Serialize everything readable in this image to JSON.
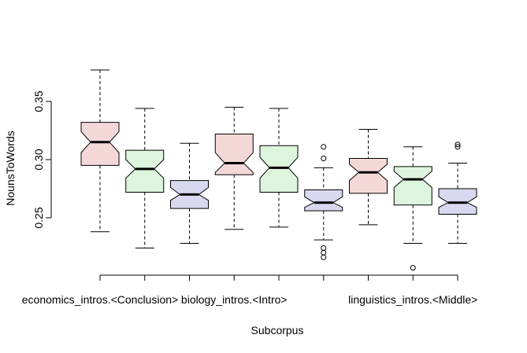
{
  "chart_data": {
    "type": "boxplot",
    "title": "",
    "xlabel": "Subcorpus",
    "ylabel": "NounsToWords",
    "ylim": [
      0.195,
      0.385
    ],
    "y_ticks": [
      0.25,
      0.3,
      0.35
    ],
    "y_tick_labels": [
      "0.25",
      "0.30",
      "0.35"
    ],
    "notched": true,
    "categories": [
      "economics_intros.<Conclusion>",
      "",
      "",
      "biology_intros.<Intro>",
      "",
      "",
      "linguistics_intros.<Middle>",
      "",
      ""
    ],
    "shown_x_labels": [
      {
        "index": 0,
        "text": "economics_intros.<Conclusion>"
      },
      {
        "index": 3,
        "text": "biology_intros.<Intro>"
      },
      {
        "index": 7,
        "text": "linguistics_intros.<Middle>"
      }
    ],
    "fill_colors": [
      "#f4d8d8",
      "#ddf4dd",
      "#d8d8f0"
    ],
    "boxes": [
      {
        "whisker_low": 0.238,
        "q1": 0.295,
        "median": 0.315,
        "q3": 0.332,
        "whisker_high": 0.377,
        "notch_low": 0.306,
        "notch_high": 0.324,
        "outliers": []
      },
      {
        "whisker_low": 0.224,
        "q1": 0.272,
        "median": 0.292,
        "q3": 0.308,
        "whisker_high": 0.344,
        "notch_low": 0.284,
        "notch_high": 0.3,
        "outliers": []
      },
      {
        "whisker_low": 0.228,
        "q1": 0.258,
        "median": 0.27,
        "q3": 0.282,
        "whisker_high": 0.314,
        "notch_low": 0.265,
        "notch_high": 0.276,
        "outliers": []
      },
      {
        "whisker_low": 0.24,
        "q1": 0.287,
        "median": 0.297,
        "q3": 0.322,
        "whisker_high": 0.345,
        "notch_low": 0.289,
        "notch_high": 0.306,
        "outliers": []
      },
      {
        "whisker_low": 0.242,
        "q1": 0.272,
        "median": 0.293,
        "q3": 0.312,
        "whisker_high": 0.344,
        "notch_low": 0.284,
        "notch_high": 0.302,
        "outliers": []
      },
      {
        "whisker_low": 0.231,
        "q1": 0.256,
        "median": 0.263,
        "q3": 0.274,
        "whisker_high": 0.293,
        "notch_low": 0.259,
        "notch_high": 0.268,
        "outliers": [
          0.311,
          0.301,
          0.224,
          0.22,
          0.216
        ]
      },
      {
        "whisker_low": 0.244,
        "q1": 0.271,
        "median": 0.289,
        "q3": 0.301,
        "whisker_high": 0.326,
        "notch_low": 0.282,
        "notch_high": 0.296,
        "outliers": []
      },
      {
        "whisker_low": 0.228,
        "q1": 0.261,
        "median": 0.283,
        "q3": 0.294,
        "whisker_high": 0.311,
        "notch_low": 0.276,
        "notch_high": 0.29,
        "outliers": [
          0.207
        ]
      },
      {
        "whisker_low": 0.228,
        "q1": 0.253,
        "median": 0.263,
        "q3": 0.275,
        "whisker_high": 0.297,
        "notch_low": 0.259,
        "notch_high": 0.268,
        "outliers": [
          0.313,
          0.311
        ]
      }
    ]
  }
}
